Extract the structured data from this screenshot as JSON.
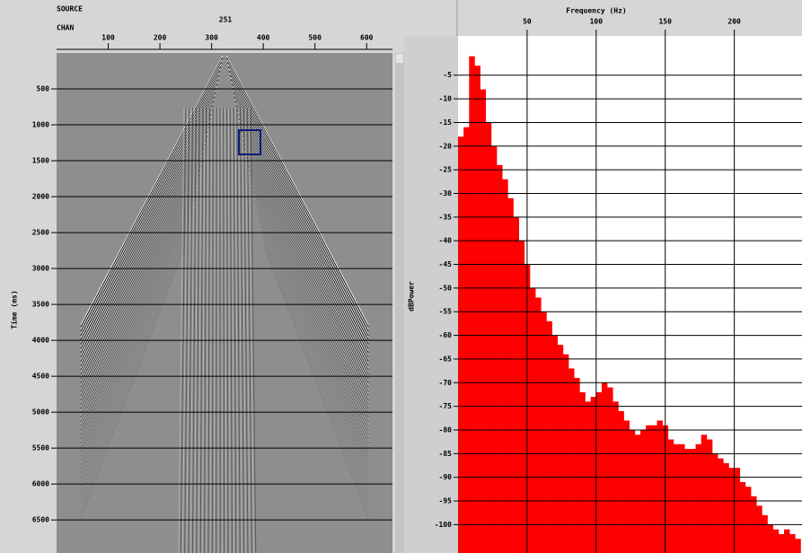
{
  "chart_data": [
    {
      "type": "seismic",
      "source": {
        "label": "SOURCE",
        "value": 251
      },
      "x_label": "CHAN",
      "y_label": "Time (ms)",
      "xlim": [
        0,
        650
      ],
      "xticks": [
        100,
        200,
        300,
        400,
        500,
        600
      ],
      "ylim": [
        0,
        6960
      ],
      "yticks": [
        500,
        1000,
        1500,
        2000,
        2500,
        3000,
        3500,
        4000,
        4500,
        5000,
        5500,
        6000,
        6500
      ],
      "grid": true
    },
    {
      "type": "histogram",
      "x_label": "Frequency (Hz)",
      "y_label": "dBPower",
      "color": "#ff0000",
      "xlim": [
        0,
        249
      ],
      "xticks": [
        50,
        100,
        150,
        200
      ],
      "ylim": [
        -106,
        3.3
      ],
      "yticks": [
        -5,
        -10,
        -15,
        -20,
        -25,
        -30,
        -35,
        -40,
        -45,
        -50,
        -55,
        -60,
        -65,
        -70,
        -75,
        -80,
        -85,
        -90,
        -95,
        -100
      ],
      "grid": true,
      "bins": [
        0,
        4,
        8,
        12,
        16,
        20,
        24,
        28,
        32,
        36,
        40,
        44,
        48,
        52,
        56,
        60,
        64,
        68,
        72,
        76,
        80,
        84,
        88,
        92,
        96,
        100,
        104,
        108,
        112,
        116,
        120,
        124,
        128,
        132,
        136,
        140,
        144,
        148,
        152,
        156,
        160,
        164,
        168,
        172,
        176,
        180,
        184,
        188,
        192,
        196,
        200,
        204,
        208,
        212,
        216,
        220,
        224,
        228,
        232,
        236,
        240,
        244,
        248
      ],
      "values": [
        -18,
        -16,
        -1,
        -3,
        -8,
        -15,
        -20,
        -24,
        -27,
        -31,
        -35,
        -40,
        -45,
        -50,
        -52,
        -55,
        -57,
        -60,
        -62,
        -64,
        -67,
        -69,
        -72,
        -74,
        -73,
        -72,
        -70,
        -71,
        -74,
        -76,
        -78,
        -80,
        -81,
        -80,
        -79,
        -79,
        -78,
        -79,
        -82,
        -83,
        -83,
        -84,
        -84,
        -83,
        -81,
        -82,
        -85,
        -86,
        -87,
        -88,
        -88,
        -91,
        -92,
        -94,
        -96,
        -98,
        -100,
        -101,
        -102,
        -101,
        -102,
        -103
      ]
    }
  ]
}
